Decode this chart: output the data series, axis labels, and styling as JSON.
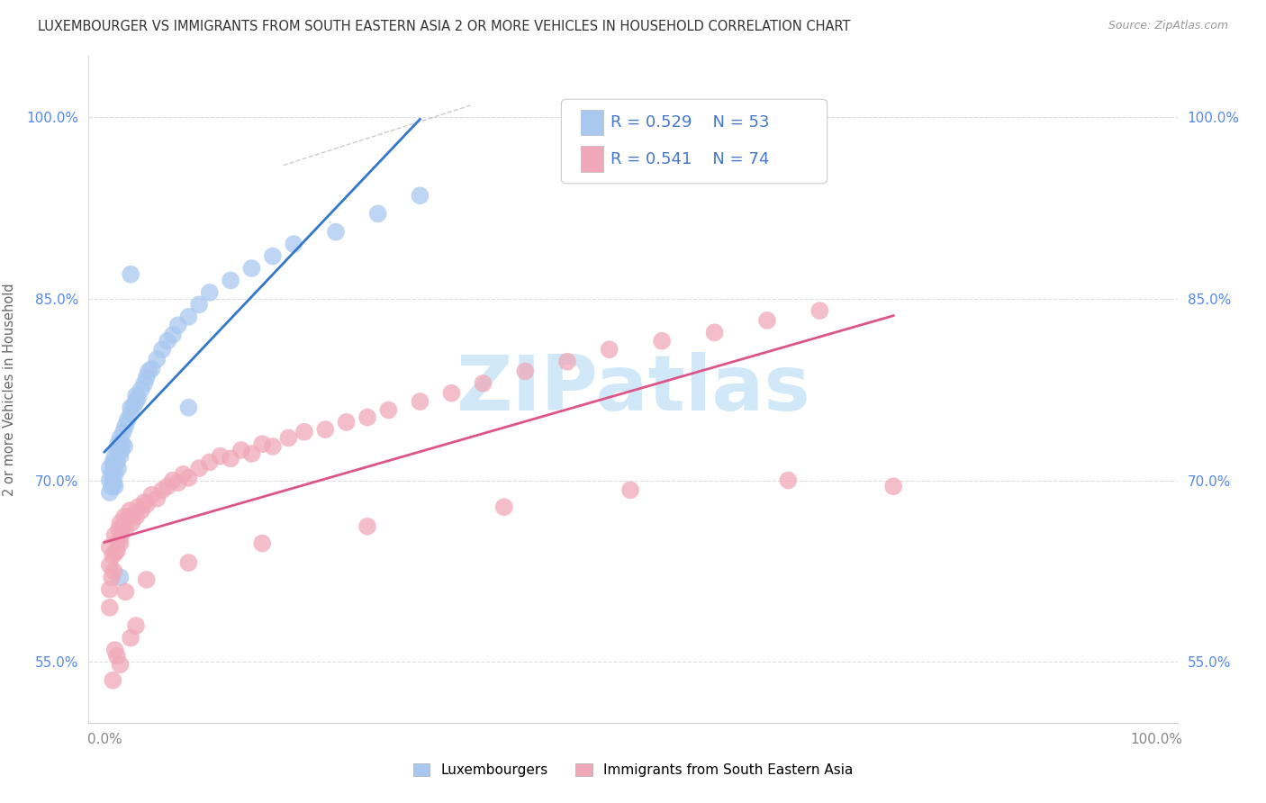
{
  "title": "LUXEMBOURGER VS IMMIGRANTS FROM SOUTH EASTERN ASIA 2 OR MORE VEHICLES IN HOUSEHOLD CORRELATION CHART",
  "source": "Source: ZipAtlas.com",
  "ylabel": "2 or more Vehicles in Household",
  "lux_color": "#a8c8f0",
  "imm_color": "#f0a8b8",
  "lux_line_color": "#3377cc",
  "imm_line_color": "#dd5588",
  "watermark_color": "#d0e8f8",
  "text_color": "#4477cc",
  "title_color": "#333333",
  "source_color": "#999999",
  "grid_color": "#dddddd",
  "ylabel_color": "#666666",
  "tick_color_y": "#5588ee",
  "tick_color_x": "#888888",
  "yticks": [
    0.55,
    0.7,
    0.85,
    1.0
  ],
  "ytick_labels": [
    "55.0%",
    "70.0%",
    "85.0%",
    "100.0%"
  ],
  "xticks": [
    0.0,
    1.0
  ],
  "xtick_labels": [
    "0.0%",
    "100.0%"
  ],
  "lux_x": [
    0.005,
    0.005,
    0.005,
    0.007,
    0.007,
    0.008,
    0.008,
    0.009,
    0.009,
    0.01,
    0.01,
    0.01,
    0.012,
    0.012,
    0.013,
    0.013,
    0.015,
    0.015,
    0.016,
    0.017,
    0.018,
    0.019,
    0.02,
    0.022,
    0.025,
    0.025,
    0.028,
    0.03,
    0.03,
    0.032,
    0.035,
    0.038,
    0.04,
    0.042,
    0.045,
    0.05,
    0.055,
    0.06,
    0.065,
    0.07,
    0.08,
    0.09,
    0.1,
    0.12,
    0.14,
    0.16,
    0.18,
    0.22,
    0.26,
    0.3,
    0.08,
    0.025,
    0.015
  ],
  "lux_y": [
    0.69,
    0.7,
    0.71,
    0.695,
    0.705,
    0.7,
    0.715,
    0.698,
    0.712,
    0.705,
    0.72,
    0.695,
    0.725,
    0.715,
    0.73,
    0.71,
    0.72,
    0.735,
    0.725,
    0.73,
    0.74,
    0.728,
    0.745,
    0.75,
    0.755,
    0.76,
    0.762,
    0.765,
    0.77,
    0.768,
    0.775,
    0.78,
    0.785,
    0.79,
    0.792,
    0.8,
    0.808,
    0.815,
    0.82,
    0.828,
    0.835,
    0.845,
    0.855,
    0.865,
    0.875,
    0.885,
    0.895,
    0.905,
    0.92,
    0.935,
    0.76,
    0.87,
    0.62
  ],
  "imm_x": [
    0.005,
    0.005,
    0.005,
    0.007,
    0.008,
    0.009,
    0.01,
    0.01,
    0.012,
    0.013,
    0.014,
    0.015,
    0.015,
    0.016,
    0.018,
    0.019,
    0.02,
    0.022,
    0.024,
    0.026,
    0.028,
    0.03,
    0.032,
    0.035,
    0.038,
    0.04,
    0.045,
    0.05,
    0.055,
    0.06,
    0.065,
    0.07,
    0.075,
    0.08,
    0.09,
    0.1,
    0.11,
    0.12,
    0.13,
    0.14,
    0.15,
    0.16,
    0.175,
    0.19,
    0.21,
    0.23,
    0.25,
    0.27,
    0.3,
    0.33,
    0.36,
    0.4,
    0.44,
    0.48,
    0.53,
    0.58,
    0.63,
    0.68,
    0.005,
    0.02,
    0.04,
    0.08,
    0.15,
    0.25,
    0.38,
    0.5,
    0.65,
    0.75,
    0.01,
    0.015,
    0.025,
    0.03,
    0.008,
    0.012
  ],
  "imm_y": [
    0.63,
    0.645,
    0.61,
    0.62,
    0.638,
    0.625,
    0.64,
    0.655,
    0.642,
    0.65,
    0.66,
    0.648,
    0.665,
    0.655,
    0.662,
    0.67,
    0.66,
    0.668,
    0.675,
    0.665,
    0.672,
    0.67,
    0.678,
    0.675,
    0.682,
    0.68,
    0.688,
    0.685,
    0.692,
    0.695,
    0.7,
    0.698,
    0.705,
    0.702,
    0.71,
    0.715,
    0.72,
    0.718,
    0.725,
    0.722,
    0.73,
    0.728,
    0.735,
    0.74,
    0.742,
    0.748,
    0.752,
    0.758,
    0.765,
    0.772,
    0.78,
    0.79,
    0.798,
    0.808,
    0.815,
    0.822,
    0.832,
    0.84,
    0.595,
    0.608,
    0.618,
    0.632,
    0.648,
    0.662,
    0.678,
    0.692,
    0.7,
    0.695,
    0.56,
    0.548,
    0.57,
    0.58,
    0.535,
    0.555
  ]
}
